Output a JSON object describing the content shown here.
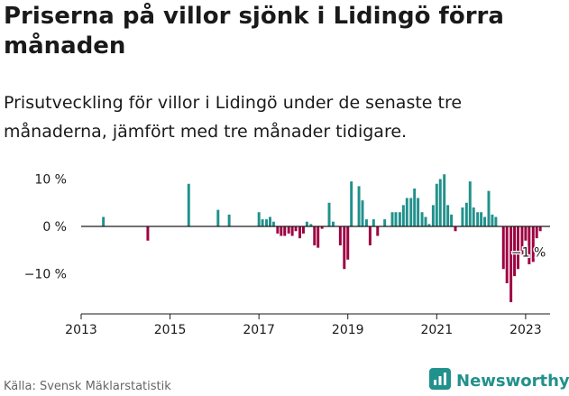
{
  "header": {
    "title": "Priserna på villor sjönk i Lidingö förra månaden",
    "subtitle": "Prisutveckling för villor i Lidingö under de senaste tre månaderna, jämfört med tre månader tidigare."
  },
  "footer": {
    "source": "Källa: Svensk Mäklarstatistik",
    "brand": "Newsworthy",
    "brand_icon": "bar-chart-logo-icon"
  },
  "colors": {
    "positive": "#21918c",
    "negative": "#9e0142",
    "text": "#1a1a1a",
    "brand": "#21918c"
  },
  "chart_data": {
    "type": "bar",
    "title": "",
    "xlabel": "",
    "ylabel": "",
    "x_unit": "year",
    "ylim": [
      -19,
      13
    ],
    "yticks": [
      10,
      0,
      -10
    ],
    "ytick_labels": [
      "10 %",
      "0 %",
      "−10 %"
    ],
    "xticks": [
      2013,
      2015,
      2017,
      2019,
      2021,
      2023
    ],
    "xticks_labels": [
      "2013",
      "2015",
      "2017",
      "2019",
      "2021",
      "2023"
    ],
    "xlim": [
      2013,
      2023.5
    ],
    "grid": false,
    "annotation": {
      "text": "−1 %",
      "x": 2023.0,
      "y": -1
    },
    "x": [
      2013.5,
      2014.5,
      2015.42,
      2016.08,
      2016.33,
      2017.0,
      2017.08,
      2017.17,
      2017.25,
      2017.33,
      2017.42,
      2017.5,
      2017.58,
      2017.67,
      2017.75,
      2017.83,
      2017.92,
      2018.0,
      2018.08,
      2018.17,
      2018.25,
      2018.33,
      2018.42,
      2018.58,
      2018.67,
      2018.83,
      2018.92,
      2019.0,
      2019.08,
      2019.25,
      2019.33,
      2019.42,
      2019.5,
      2019.58,
      2019.67,
      2019.83,
      2020.0,
      2020.08,
      2020.17,
      2020.25,
      2020.33,
      2020.42,
      2020.5,
      2020.58,
      2020.67,
      2020.75,
      2020.83,
      2020.92,
      2021.0,
      2021.08,
      2021.17,
      2021.25,
      2021.33,
      2021.42,
      2021.58,
      2021.67,
      2021.75,
      2021.83,
      2021.92,
      2022.0,
      2022.08,
      2022.17,
      2022.25,
      2022.33,
      2022.5,
      2022.58,
      2022.67,
      2022.75,
      2022.83,
      2022.92,
      2023.0,
      2023.08,
      2023.17,
      2023.25,
      2023.33,
      2023.42
    ],
    "values": [
      2,
      -3,
      9,
      3.5,
      2.5,
      3,
      1.5,
      1.5,
      2,
      1,
      -1.5,
      -2,
      -2,
      -1.5,
      -2,
      -1,
      -2.5,
      -1.5,
      1,
      0.5,
      -4,
      -4.5,
      -0.5,
      5,
      1,
      -4,
      -9,
      -7,
      9.5,
      8.5,
      5.5,
      1.5,
      -4,
      1.5,
      -2,
      1.5,
      3,
      3,
      3,
      4.5,
      6,
      6,
      8,
      6,
      3,
      2,
      0.5,
      4.5,
      9,
      10,
      11,
      4.5,
      2.5,
      -1,
      4,
      5,
      9.5,
      4,
      3,
      3,
      2,
      7.5,
      2.5,
      2,
      -9,
      -12,
      -16,
      -10.5,
      -9,
      -6,
      -3,
      -8,
      -7.5,
      -2.5,
      -1,
      0
    ]
  }
}
